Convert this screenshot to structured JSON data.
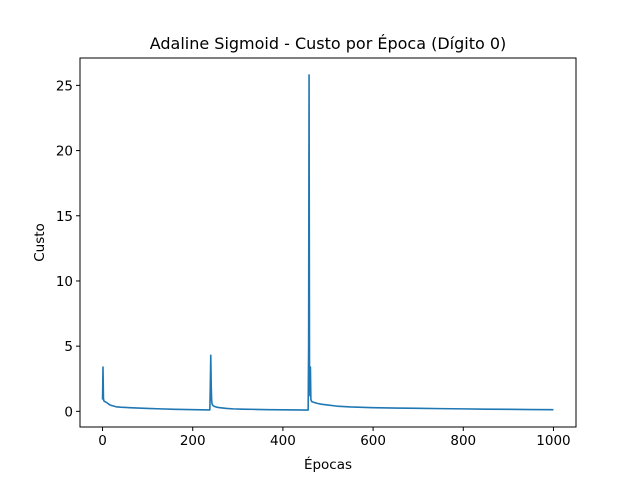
{
  "chart_data": {
    "type": "line",
    "title": "Adaline Sigmoid - Custo por Época (Dígito 0)",
    "xlabel": "Épocas",
    "ylabel": "Custo",
    "xlim": [
      -50,
      1050
    ],
    "ylim": [
      -1.2,
      27.1
    ],
    "x_ticks": [
      0,
      200,
      400,
      600,
      800,
      1000
    ],
    "y_ticks": [
      0,
      5,
      10,
      15,
      20,
      25
    ],
    "grid": false,
    "series": [
      {
        "color": "#1f77b4",
        "x": [
          0,
          1,
          2,
          3,
          5,
          8,
          12,
          16,
          20,
          25,
          30,
          40,
          60,
          80,
          100,
          130,
          160,
          190,
          220,
          238,
          239,
          240,
          241,
          242,
          243,
          245,
          248,
          252,
          258,
          265,
          275,
          290,
          310,
          340,
          370,
          400,
          430,
          456,
          457,
          458,
          459,
          460,
          461,
          462,
          464,
          468,
          475,
          485,
          500,
          520,
          550,
          600,
          650,
          700,
          750,
          800,
          850,
          900,
          950,
          1000
        ],
        "y": [
          0.9,
          3.4,
          1.0,
          0.8,
          0.75,
          0.7,
          0.6,
          0.5,
          0.45,
          0.4,
          0.35,
          0.32,
          0.28,
          0.25,
          0.22,
          0.19,
          0.16,
          0.14,
          0.12,
          0.11,
          2.0,
          4.3,
          2.0,
          0.8,
          0.55,
          0.45,
          0.38,
          0.33,
          0.29,
          0.26,
          0.22,
          0.19,
          0.17,
          0.15,
          0.13,
          0.12,
          0.11,
          0.1,
          5.0,
          25.8,
          3.4,
          1.2,
          3.4,
          0.9,
          0.75,
          0.7,
          0.62,
          0.55,
          0.48,
          0.4,
          0.34,
          0.28,
          0.25,
          0.23,
          0.21,
          0.19,
          0.17,
          0.16,
          0.14,
          0.13
        ]
      }
    ]
  }
}
